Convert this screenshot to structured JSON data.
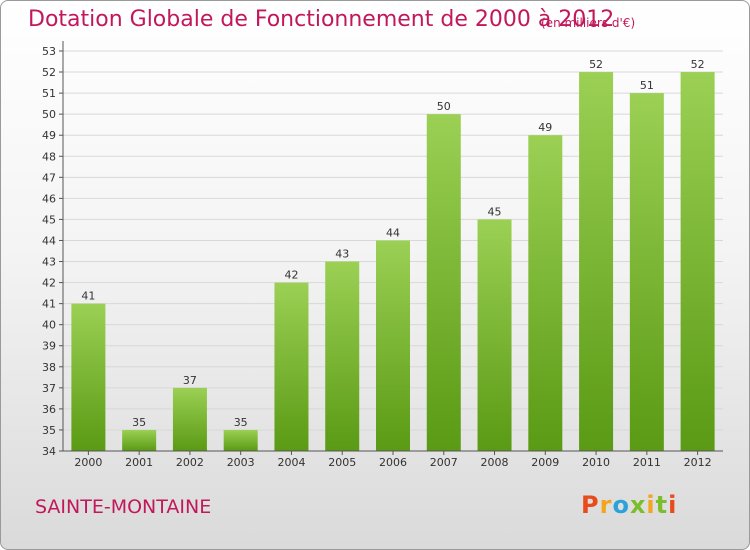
{
  "header": {
    "title": "Dotation Globale de Fonctionnement de 2000 à 2012",
    "subtitle": "(en milliers d'€)"
  },
  "footer": {
    "town": "SAINTE-MONTAINE",
    "logo_text": "Proxiti"
  },
  "colors": {
    "title": "#c2185b",
    "bar_top": "#9bd054",
    "bar_bottom": "#5a9a14",
    "logo_letters": [
      "#e84c1a",
      "#f2a51f",
      "#2ba3da",
      "#7cbd2b",
      "#f2a51f",
      "#7cbd2b",
      "#e84c1a"
    ]
  },
  "chart_data": {
    "type": "bar",
    "categories": [
      "2000",
      "2001",
      "2002",
      "2003",
      "2004",
      "2005",
      "2006",
      "2007",
      "2008",
      "2009",
      "2010",
      "2011",
      "2012"
    ],
    "values": [
      41,
      35,
      37,
      35,
      42,
      43,
      44,
      50,
      45,
      49,
      52,
      51,
      52
    ],
    "title": "Dotation Globale de Fonctionnement de 2000 à 2012",
    "subtitle": "(en milliers d'€)",
    "ylim": [
      34,
      53
    ],
    "yticks": [
      34,
      35,
      36,
      37,
      38,
      39,
      40,
      41,
      42,
      43,
      44,
      45,
      46,
      47,
      48,
      49,
      50,
      51,
      52,
      53
    ],
    "grid": true,
    "data_labels": true
  }
}
